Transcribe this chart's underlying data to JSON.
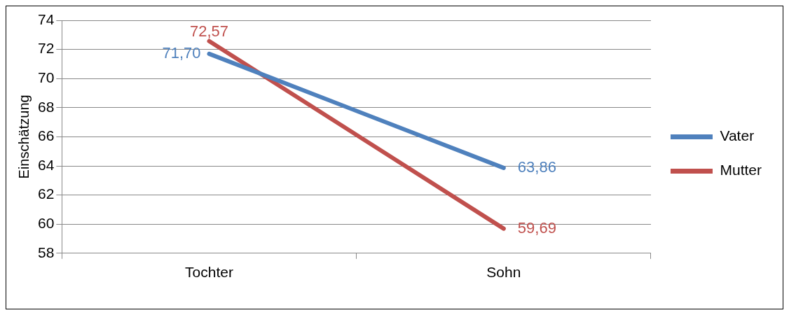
{
  "chart_data": {
    "type": "line",
    "ylabel": "Einschätzung",
    "categories": [
      "Tochter",
      "Sohn"
    ],
    "series": [
      {
        "name": "Vater",
        "color": "#4f81bd",
        "values": [
          71.7,
          63.86
        ],
        "value_labels": [
          "71,70",
          "63,86"
        ]
      },
      {
        "name": "Mutter",
        "color": "#c0504d",
        "values": [
          72.57,
          59.69
        ],
        "value_labels": [
          "72,57",
          "59,69"
        ]
      }
    ],
    "ylim": [
      58,
      74
    ],
    "yticks": [
      58,
      60,
      62,
      64,
      66,
      68,
      70,
      72,
      74
    ],
    "grid": "y",
    "legend": "right",
    "marker": "none",
    "line_style": "solid"
  }
}
